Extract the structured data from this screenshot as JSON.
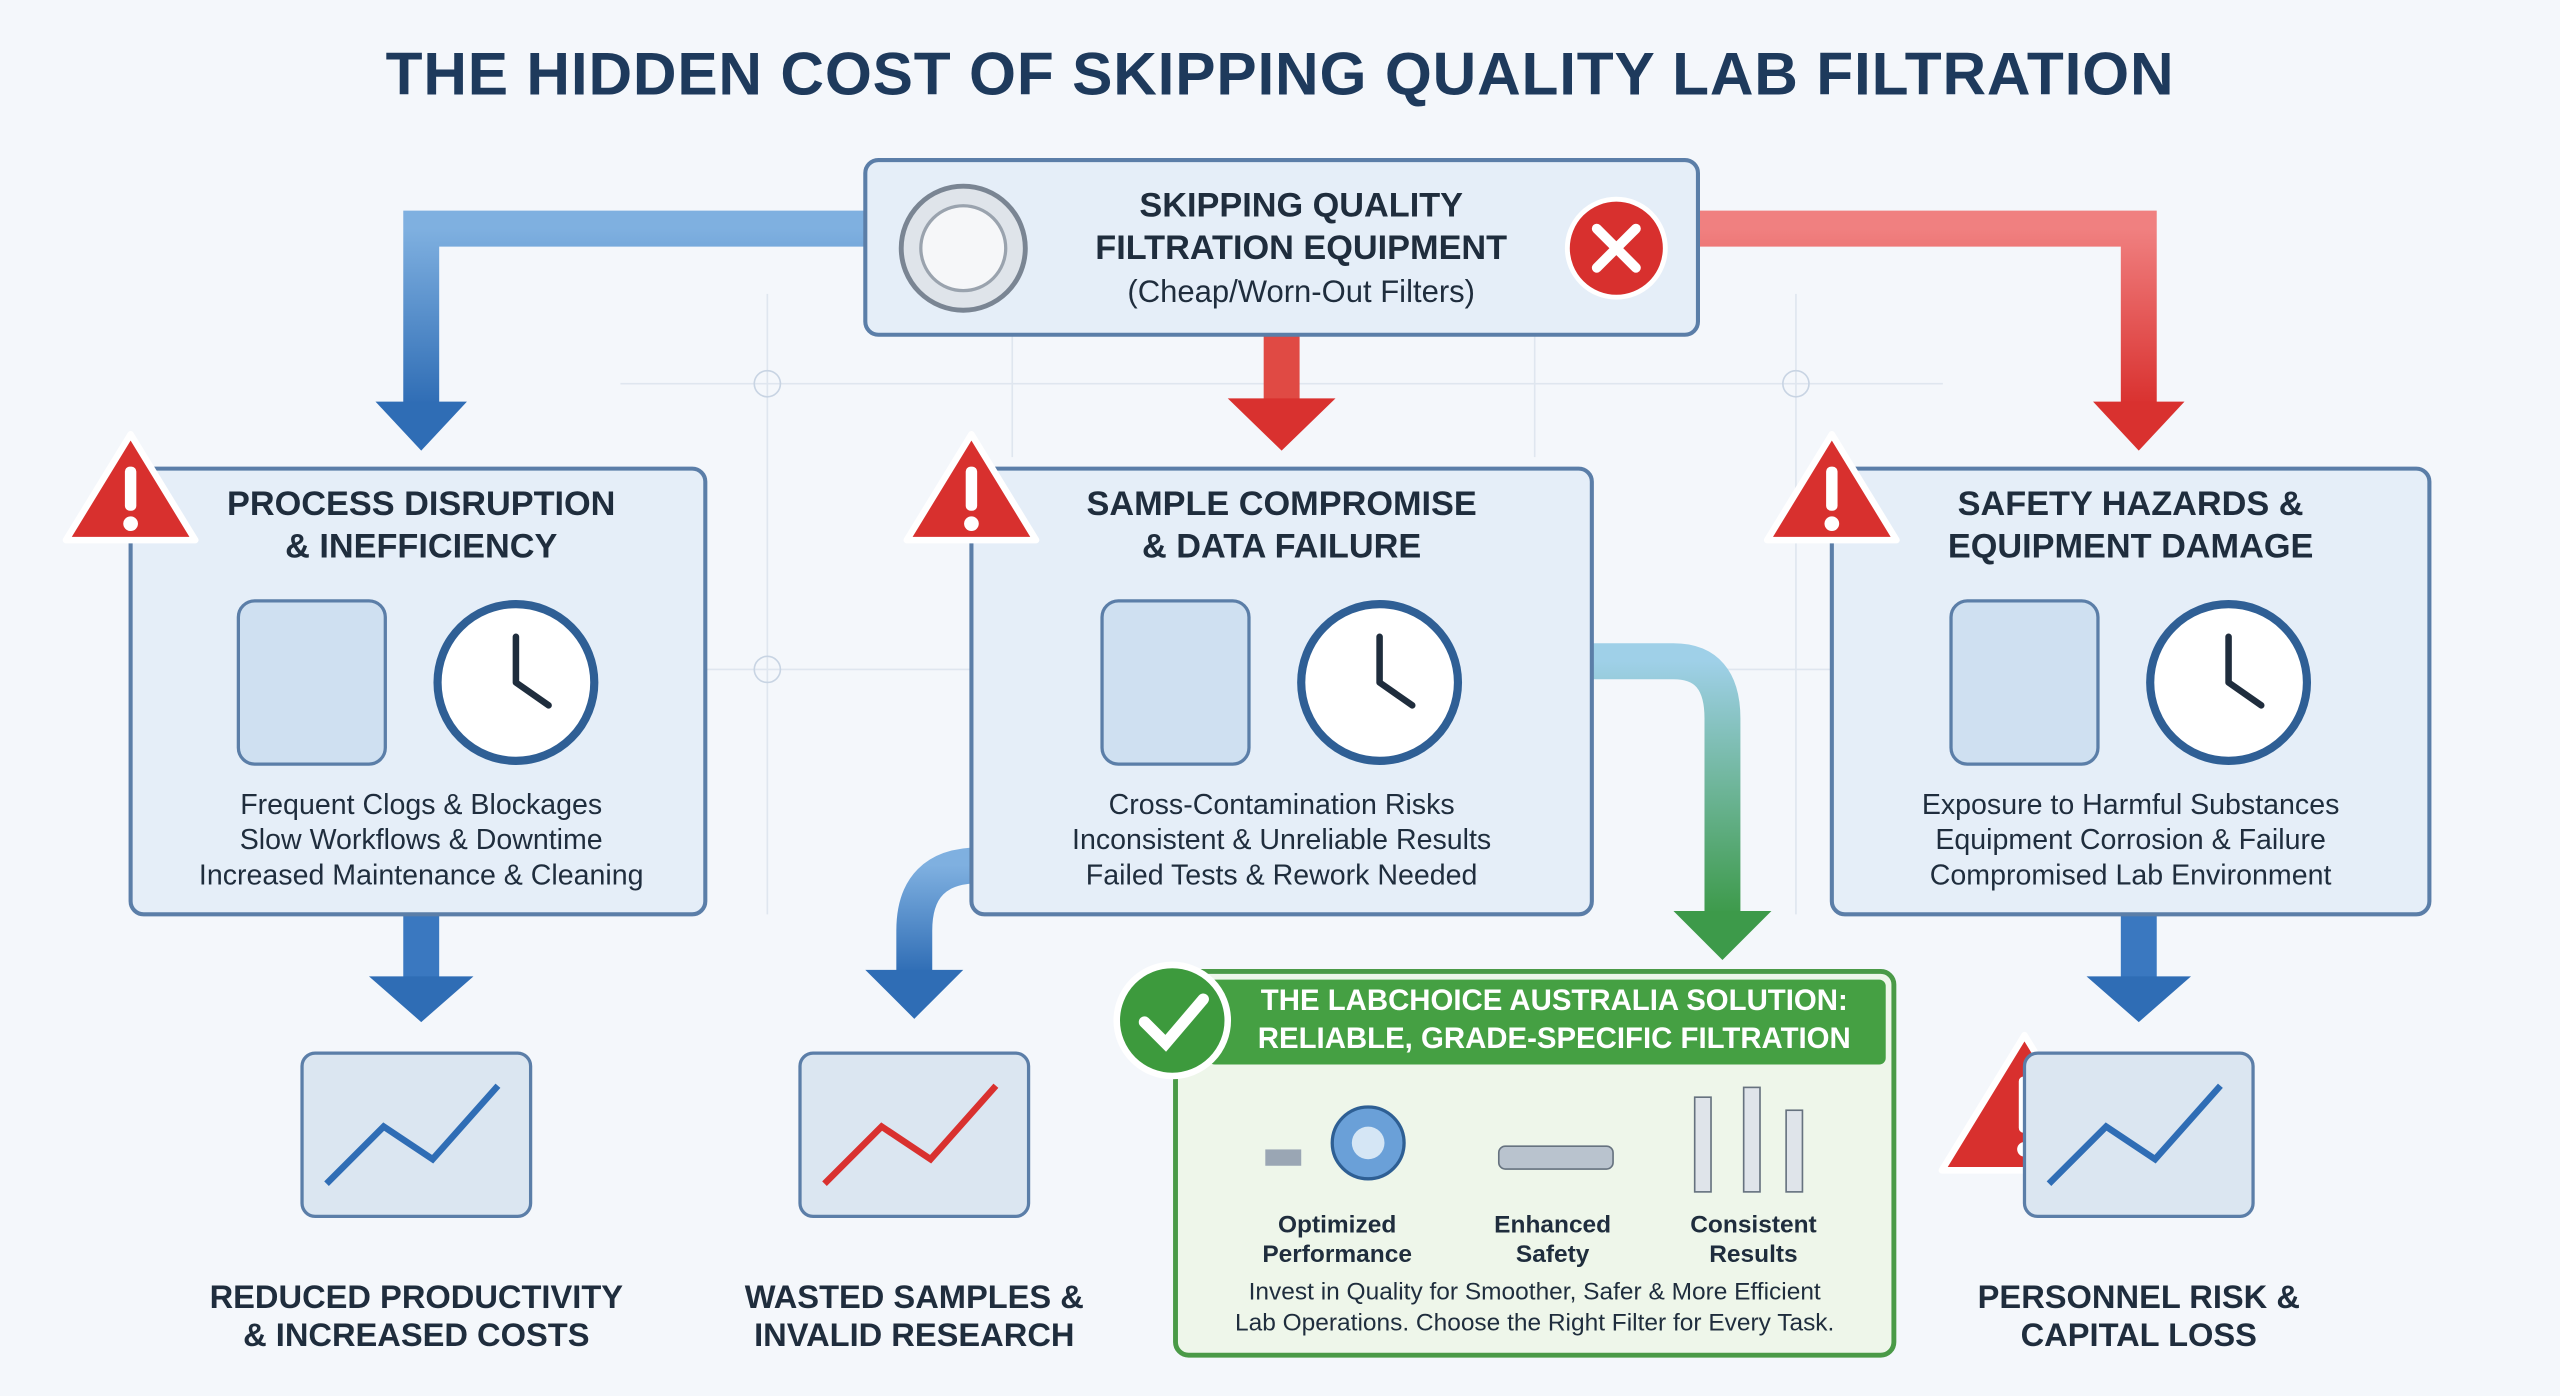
{
  "title": "THE HIDDEN COST OF SKIPPING QUALITY LAB FILTRATION",
  "source": {
    "lines": [
      "SKIPPING QUALITY",
      "FILTRATION EQUIPMENT"
    ],
    "note": "(Cheap/Worn-Out Filters)"
  },
  "impacts": [
    {
      "title": [
        "PROCESS DISRUPTION",
        "& INEFFICIENCY"
      ],
      "items": [
        "Frequent Clogs & Blockages",
        "Slow Workflows & Downtime",
        "Increased Maintenance & Cleaning"
      ],
      "outcome": [
        "REDUCED PRODUCTIVITY",
        "& INCREASED COSTS"
      ]
    },
    {
      "title": [
        "SAMPLE COMPROMISE",
        "& DATA FAILURE"
      ],
      "items": [
        "Cross-Contamination Risks",
        "Inconsistent & Unreliable Results",
        "Failed Tests & Rework Needed"
      ],
      "outcome": [
        "WASTED SAMPLES &",
        "INVALID RESEARCH"
      ]
    },
    {
      "title": [
        "SAFETY HAZARDS &",
        "EQUIPMENT DAMAGE"
      ],
      "items": [
        "Exposure to Harmful Substances",
        "Equipment Corrosion & Failure",
        "Compromised Lab Environment"
      ],
      "outcome": [
        "PERSONNEL RISK &",
        "CAPITAL LOSS"
      ]
    }
  ],
  "solution": {
    "title": [
      "THE LABCHOICE AUSTRALIA SOLUTION:",
      "RELIABLE, GRADE-SPECIFIC FILTRATION"
    ],
    "features": [
      [
        "Optimized",
        "Performance"
      ],
      [
        "Enhanced",
        "Safety"
      ],
      [
        "Consistent",
        "Results"
      ]
    ],
    "message": [
      "Invest in Quality for Smoother, Safer & More Efficient",
      "Lab Operations. Choose the Right Filter for Every Task."
    ]
  }
}
